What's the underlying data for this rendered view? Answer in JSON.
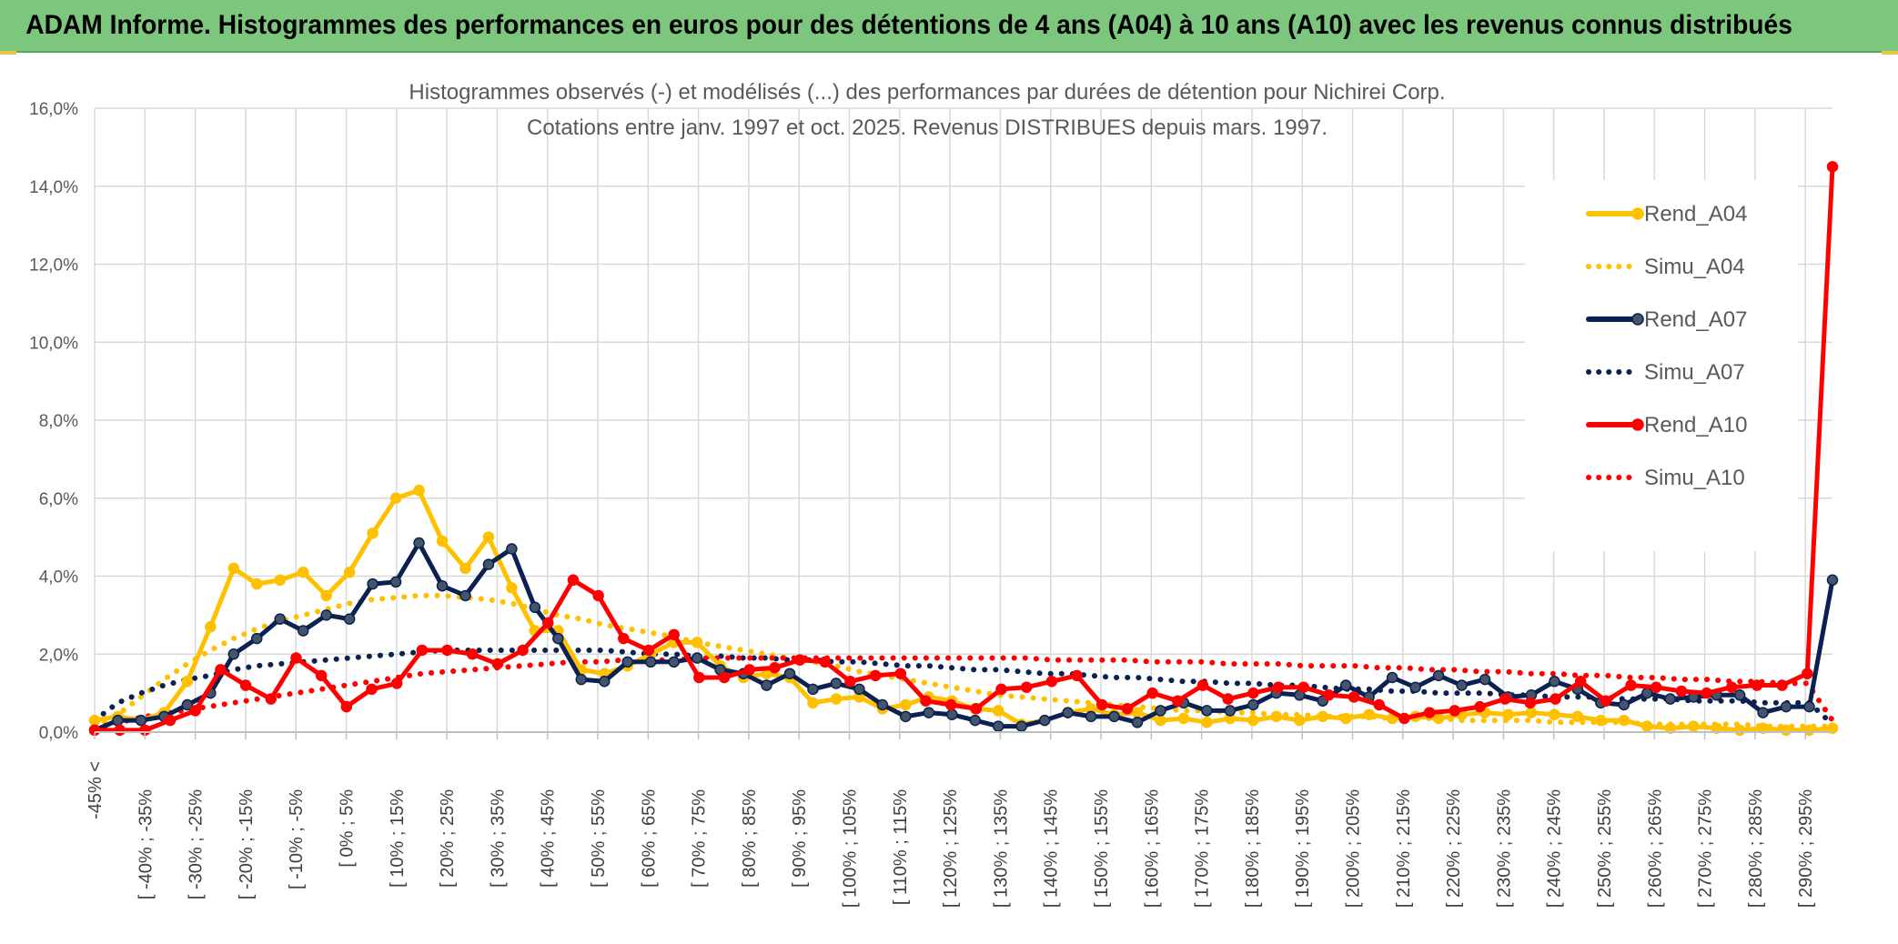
{
  "banner": {
    "title": "ADAM Informe. Histogrammes des performances en euros pour des détentions de 4 ans (A04) à 10 ans (A10) avec les revenus connus distribués"
  },
  "chart_data": {
    "type": "line",
    "title": "Histogrammes observés (-) et modélisés (...) des performances par durées de détention pour Nichirei Corp.",
    "subtitle": "Cotations entre janv. 1997 et oct. 2025. Revenus DISTRIBUES depuis mars. 1997.",
    "ylim": [
      0,
      16
    ],
    "yticks": [
      "0,0%",
      "2,0%",
      "4,0%",
      "6,0%",
      "8,0%",
      "10,0%",
      "12,0%",
      "14,0%",
      "16,0%"
    ],
    "category_labels": [
      "-45% <",
      "[ -40% ; -35%",
      "[ -30% ; -25%",
      "[ -20% ; -15%",
      "[ -10% ; -5%",
      "[ 0% ; 5%",
      "[ 10% ; 15%",
      "[ 20% ; 25%",
      "[ 30% ; 35%",
      "[ 40% ; 45%",
      "[ 50% ; 55%",
      "[ 60% ; 65%",
      "[ 70% ; 75%",
      "[ 80% ; 85%",
      "[ 90% ; 95%",
      "[ 100% ; 105%",
      "[ 110% ; 115%",
      "[ 120% ; 125%",
      "[ 130% ; 135%",
      "[ 140% ; 145%",
      "[ 150% ; 155%",
      "[ 160% ; 165%",
      "[ 170% ; 175%",
      "[ 180% ; 185%",
      "[ 190% ; 195%",
      "[ 200% ; 205%",
      "[ 210% ; 215%",
      "[ 220% ; 225%",
      "[ 230% ; 235%",
      "[ 240% ; 245%",
      "[ 250% ; 255%",
      "[ 260% ; 265%",
      "[ 270% ; 275%",
      "[ 280% ; 285%",
      "[ 290% ; 295%"
    ],
    "legend_position": "right",
    "series": [
      {
        "name": "Rend_A04",
        "color": "#ffc000",
        "style": "solid",
        "markers": true,
        "values": [
          0.3,
          0.4,
          0.3,
          0.5,
          1.3,
          2.7,
          4.2,
          3.8,
          3.9,
          4.1,
          3.5,
          4.1,
          5.1,
          6.0,
          6.2,
          4.9,
          4.2,
          5.0,
          3.7,
          2.6,
          2.6,
          1.6,
          1.5,
          1.7,
          2.0,
          2.3,
          2.3,
          1.7,
          1.4,
          1.5,
          1.4,
          0.75,
          0.85,
          0.9,
          0.6,
          0.7,
          0.9,
          0.8,
          0.6,
          0.55,
          0.2,
          0.3,
          0.5,
          0.6,
          0.45,
          0.5,
          0.3,
          0.35,
          0.25,
          0.35,
          0.3,
          0.4,
          0.3,
          0.4,
          0.35,
          0.45,
          0.35,
          0.4,
          0.35,
          0.45,
          0.5,
          0.45,
          0.5,
          0.45,
          0.4,
          0.3,
          0.3,
          0.15,
          0.1,
          0.15,
          0.1,
          0.05,
          0.1,
          0.05,
          0.05,
          0.1
        ]
      },
      {
        "name": "Simu_A04",
        "color": "#ffc000",
        "style": "dotted",
        "markers": false,
        "values": [
          0.15,
          0.45,
          0.9,
          1.35,
          1.75,
          2.1,
          2.4,
          2.65,
          2.85,
          3.0,
          3.15,
          3.3,
          3.4,
          3.45,
          3.5,
          3.5,
          3.45,
          3.4,
          3.3,
          3.15,
          3.0,
          2.9,
          2.75,
          2.65,
          2.55,
          2.45,
          2.3,
          2.2,
          2.1,
          2.0,
          1.9,
          1.8,
          1.7,
          1.55,
          1.45,
          1.35,
          1.25,
          1.15,
          1.05,
          0.95,
          0.9,
          0.85,
          0.8,
          0.75,
          0.7,
          0.65,
          0.6,
          0.55,
          0.55,
          0.5,
          0.5,
          0.45,
          0.45,
          0.4,
          0.4,
          0.4,
          0.35,
          0.35,
          0.35,
          0.3,
          0.3,
          0.3,
          0.3,
          0.25,
          0.25,
          0.25,
          0.25,
          0.2,
          0.2,
          0.2,
          0.2,
          0.2,
          0.15,
          0.15,
          0.15,
          0.15
        ]
      },
      {
        "name": "Rend_A07",
        "color": "#0b2152",
        "style": "solid",
        "markers": true,
        "values": [
          0.05,
          0.3,
          0.3,
          0.4,
          0.7,
          1.0,
          2.0,
          2.4,
          2.9,
          2.6,
          3.0,
          2.9,
          3.8,
          3.85,
          4.85,
          3.75,
          3.5,
          4.3,
          4.7,
          3.2,
          2.4,
          1.35,
          1.3,
          1.8,
          1.8,
          1.8,
          1.9,
          1.6,
          1.5,
          1.2,
          1.5,
          1.1,
          1.25,
          1.1,
          0.7,
          0.4,
          0.5,
          0.45,
          0.3,
          0.15,
          0.15,
          0.3,
          0.5,
          0.4,
          0.4,
          0.25,
          0.55,
          0.75,
          0.55,
          0.55,
          0.7,
          1.0,
          0.95,
          0.8,
          1.2,
          0.9,
          1.4,
          1.15,
          1.45,
          1.2,
          1.35,
          0.9,
          0.95,
          1.3,
          1.1,
          0.75,
          0.7,
          1.0,
          0.85,
          0.9,
          0.95,
          0.95,
          0.5,
          0.65,
          0.65,
          3.9
        ]
      },
      {
        "name": "Simu_A07",
        "color": "#0b2152",
        "style": "dotted",
        "markers": false,
        "values": [
          0.3,
          0.75,
          1.0,
          1.2,
          1.35,
          1.45,
          1.6,
          1.7,
          1.75,
          1.8,
          1.85,
          1.9,
          1.95,
          2.0,
          2.05,
          2.1,
          2.1,
          2.1,
          2.1,
          2.1,
          2.1,
          2.1,
          2.1,
          2.05,
          2.0,
          2.0,
          1.95,
          1.95,
          1.9,
          1.9,
          1.85,
          1.85,
          1.8,
          1.8,
          1.75,
          1.7,
          1.7,
          1.65,
          1.6,
          1.6,
          1.55,
          1.5,
          1.5,
          1.45,
          1.4,
          1.4,
          1.35,
          1.3,
          1.3,
          1.25,
          1.25,
          1.2,
          1.2,
          1.15,
          1.1,
          1.1,
          1.05,
          1.05,
          1.0,
          1.0,
          1.0,
          0.95,
          0.95,
          0.9,
          0.9,
          0.9,
          0.85,
          0.85,
          0.85,
          0.8,
          0.8,
          0.8,
          0.75,
          0.75,
          0.75,
          0.2
        ]
      },
      {
        "name": "Rend_A10",
        "color": "#ff0000",
        "style": "solid",
        "markers": true,
        "values": [
          0.05,
          0.05,
          0.05,
          0.3,
          0.55,
          1.6,
          1.2,
          0.85,
          1.9,
          1.45,
          0.65,
          1.1,
          1.25,
          2.1,
          2.1,
          2.0,
          1.75,
          2.1,
          2.8,
          3.9,
          3.5,
          2.4,
          2.1,
          2.5,
          1.4,
          1.4,
          1.6,
          1.65,
          1.85,
          1.8,
          1.3,
          1.45,
          1.5,
          0.8,
          0.7,
          0.6,
          1.1,
          1.15,
          1.3,
          1.45,
          0.7,
          0.6,
          1.0,
          0.8,
          1.2,
          0.85,
          1.0,
          1.15,
          1.15,
          0.95,
          0.9,
          0.7,
          0.35,
          0.5,
          0.55,
          0.65,
          0.85,
          0.75,
          0.85,
          1.3,
          0.8,
          1.2,
          1.15,
          1.05,
          1.0,
          1.15,
          1.2,
          1.2,
          1.5,
          14.5
        ]
      },
      {
        "name": "Simu_A10",
        "color": "#ff0000",
        "style": "dotted",
        "markers": false,
        "values": [
          0.1,
          0.25,
          0.4,
          0.5,
          0.6,
          0.7,
          0.8,
          0.9,
          1.0,
          1.1,
          1.2,
          1.3,
          1.4,
          1.5,
          1.55,
          1.6,
          1.65,
          1.7,
          1.75,
          1.8,
          1.8,
          1.85,
          1.85,
          1.85,
          1.9,
          1.9,
          1.9,
          1.9,
          1.9,
          1.9,
          1.9,
          1.9,
          1.9,
          1.9,
          1.9,
          1.9,
          1.9,
          1.9,
          1.85,
          1.85,
          1.85,
          1.85,
          1.8,
          1.8,
          1.8,
          1.75,
          1.75,
          1.75,
          1.7,
          1.7,
          1.7,
          1.65,
          1.65,
          1.6,
          1.6,
          1.55,
          1.55,
          1.5,
          1.5,
          1.45,
          1.45,
          1.4,
          1.4,
          1.35,
          1.35,
          1.3,
          1.3,
          1.25,
          1.25,
          0.3
        ]
      }
    ]
  }
}
